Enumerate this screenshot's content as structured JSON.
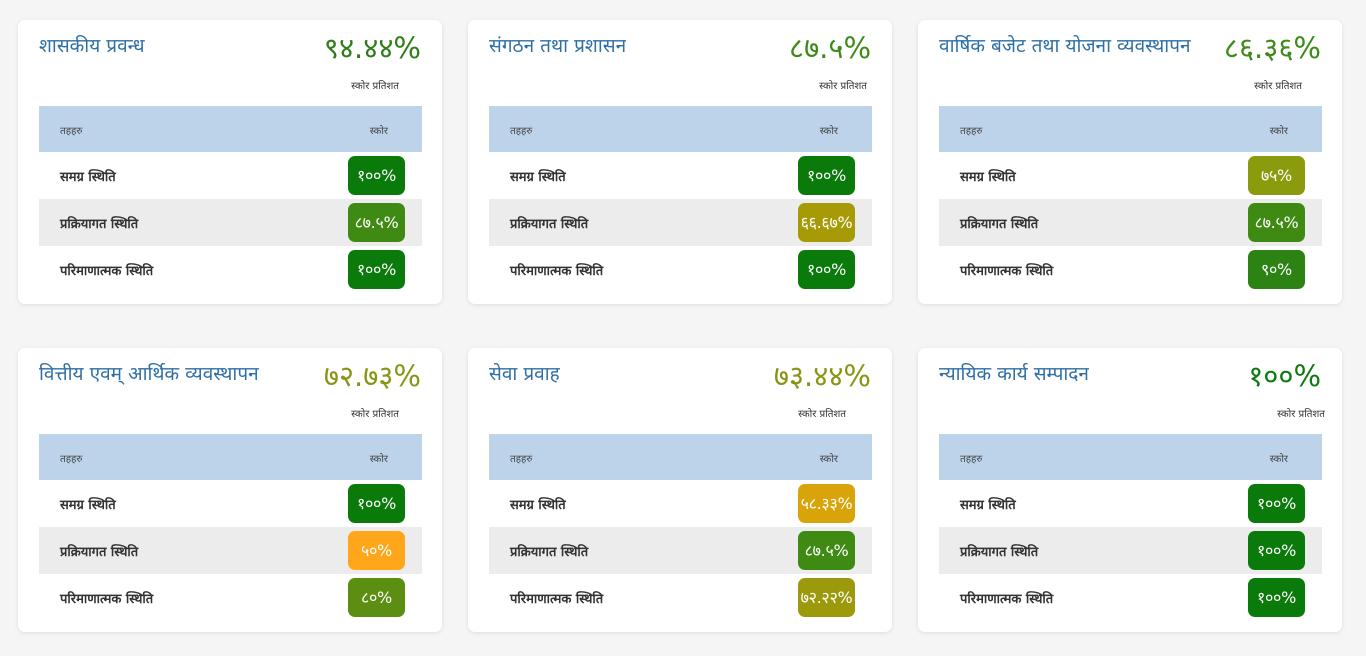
{
  "table_header": {
    "col_left": "तहहरु",
    "col_right": "स्कोर"
  },
  "score_caption": "स्कोर प्रतिशत",
  "cards": [
    {
      "title": "शासकीय प्रवन्ध",
      "score": "९४.४४%",
      "score_color": "#2f7d1a",
      "rows": [
        {
          "label": "समग्र स्थिति",
          "value": "१००%",
          "color": "#0a7a0a"
        },
        {
          "label": "प्रक्रियागत स्थिति",
          "value": "८७.५%",
          "color": "#3f8a12"
        },
        {
          "label": "परिमाणात्मक स्थिति",
          "value": "१००%",
          "color": "#0a7a0a"
        }
      ]
    },
    {
      "title": "संगठन तथा प्रशासन",
      "score": "८७.५%",
      "score_color": "#3d8a17",
      "rows": [
        {
          "label": "समग्र स्थिति",
          "value": "१००%",
          "color": "#0a7a0a"
        },
        {
          "label": "प्रक्रियागत स्थिति",
          "value": "६६.६७%",
          "color": "#a69b06"
        },
        {
          "label": "परिमाणात्मक स्थिति",
          "value": "१००%",
          "color": "#0a7a0a"
        }
      ]
    },
    {
      "title": "वार्षिक बजेट तथा योजना व्यवस्थापन",
      "score": "८६.३६%",
      "score_color": "#3d8a17",
      "rows": [
        {
          "label": "समग्र स्थिति",
          "value": "७५%",
          "color": "#8c9a0e"
        },
        {
          "label": "प्रक्रियागत स्थिति",
          "value": "८७.५%",
          "color": "#3f8a12"
        },
        {
          "label": "परिमाणात्मक स्थिति",
          "value": "९०%",
          "color": "#2c8212"
        }
      ]
    },
    {
      "title": "वित्तीय एवम् आर्थिक व्यवस्थापन",
      "score": "७२.७३%",
      "score_color": "#8a9414",
      "rows": [
        {
          "label": "समग्र स्थिति",
          "value": "१००%",
          "color": "#0a7a0a"
        },
        {
          "label": "प्रक्रियागत स्थिति",
          "value": "५०%",
          "color": "#ffa61a"
        },
        {
          "label": "परिमाणात्मक स्थिति",
          "value": "८०%",
          "color": "#5c8e12"
        }
      ]
    },
    {
      "title": "सेवा प्रवाह",
      "score": "७३.४४%",
      "score_color": "#8a9414",
      "rows": [
        {
          "label": "समग्र स्थिति",
          "value": "५८.३३%",
          "color": "#d9a40a"
        },
        {
          "label": "प्रक्रियागत स्थिति",
          "value": "८७.५%",
          "color": "#3f8a12"
        },
        {
          "label": "परिमाणात्मक स्थिति",
          "value": "७२.२२%",
          "color": "#9c9a0c"
        }
      ]
    },
    {
      "title": "न्यायिक कार्य सम्पादन",
      "score": "१००%",
      "score_color": "#0f7a12",
      "rows": [
        {
          "label": "समग्र स्थिति",
          "value": "१००%",
          "color": "#0a7a0a"
        },
        {
          "label": "प्रक्रियागत स्थिति",
          "value": "१००%",
          "color": "#0a7a0a"
        },
        {
          "label": "परिमाणात्मक स्थिति",
          "value": "१००%",
          "color": "#0a7a0a"
        }
      ]
    }
  ]
}
